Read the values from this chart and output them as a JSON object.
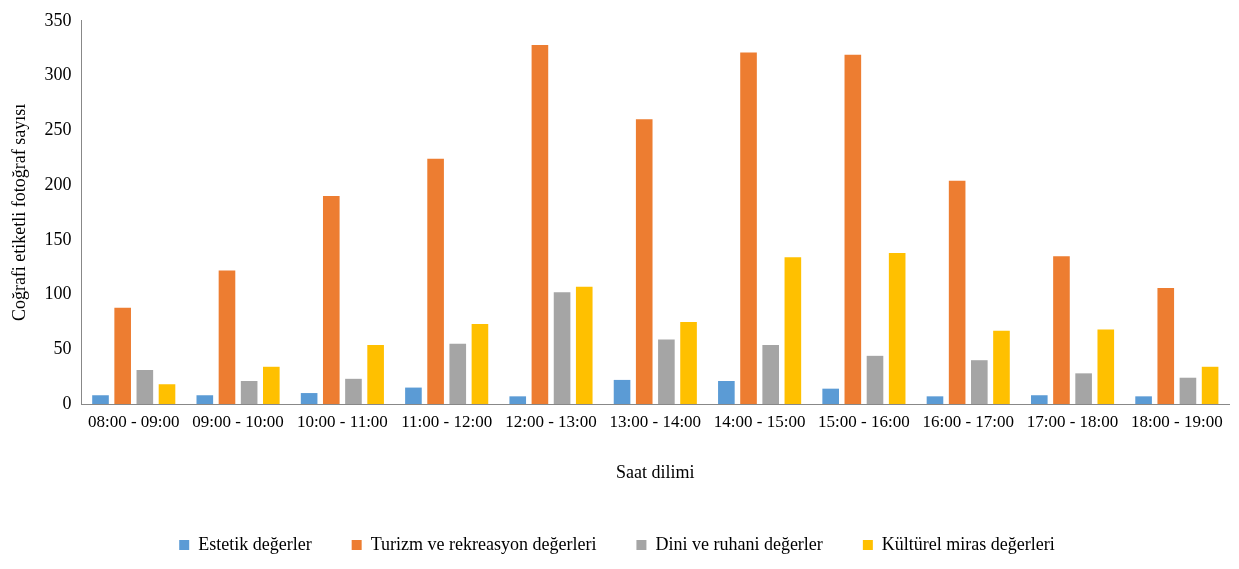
{
  "chart_data": {
    "type": "bar",
    "xlabel": "Saat dilimi",
    "ylabel": "Coğrafi etiketli fotoğraf sayısı",
    "categories": [
      "08:00 - 09:00",
      "09:00 - 10:00",
      "10:00 - 11:00",
      "11:00 - 12:00",
      "12:00 - 13:00",
      "13:00 - 14:00",
      "14:00 - 15:00",
      "15:00 - 16:00",
      "16:00 - 17:00",
      "17:00 - 18:00",
      "18:00 - 19:00"
    ],
    "series": [
      {
        "name": "Estetik değerler",
        "color": "#5b9bd5",
        "values": [
          8,
          8,
          10,
          15,
          7,
          22,
          21,
          14,
          7,
          8,
          7
        ]
      },
      {
        "name": "Turizm ve rekreasyon değerleri",
        "color": "#ed7d31",
        "values": [
          88,
          122,
          190,
          224,
          328,
          260,
          321,
          319,
          204,
          135,
          106
        ]
      },
      {
        "name": "Dini ve ruhani değerler",
        "color": "#a5a5a5",
        "values": [
          31,
          21,
          23,
          55,
          102,
          59,
          54,
          44,
          40,
          28,
          24
        ]
      },
      {
        "name": "Kültürel miras değerleri",
        "color": "#ffc000",
        "values": [
          18,
          34,
          54,
          73,
          107,
          75,
          134,
          138,
          67,
          68,
          34
        ]
      }
    ],
    "ylim": [
      0,
      350
    ],
    "yticks": [
      0,
      50,
      100,
      150,
      200,
      250,
      300,
      350
    ],
    "grid": false,
    "legend": "bottom"
  }
}
